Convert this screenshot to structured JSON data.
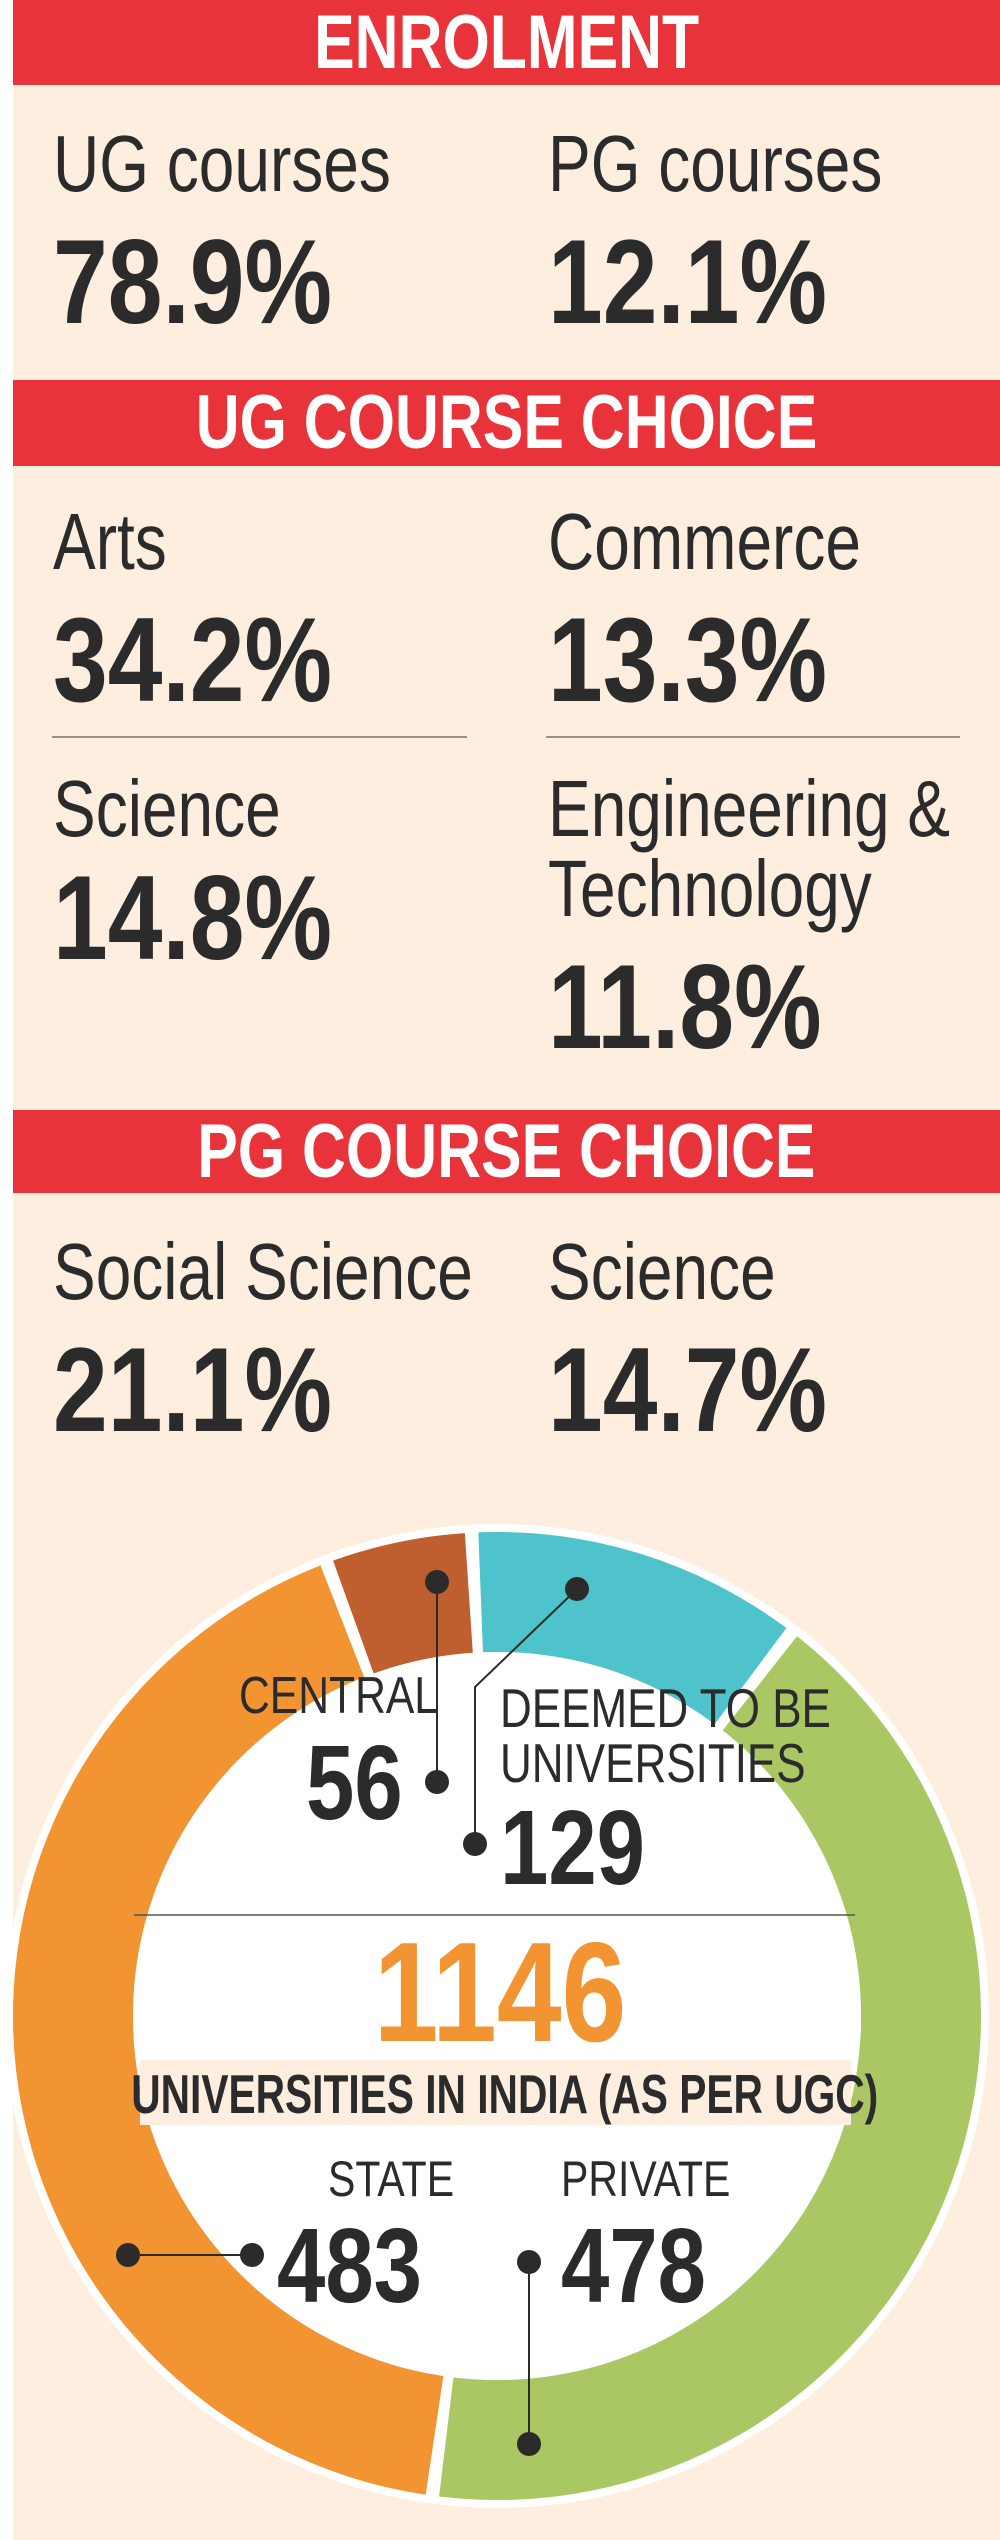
{
  "sections": {
    "enrolment": {
      "title": "ENROLMENT",
      "items": [
        {
          "label": "UG courses",
          "value": "78.9%"
        },
        {
          "label": "PG courses",
          "value": "12.1%"
        }
      ]
    },
    "ug_choice": {
      "title": "UG COURSE CHOICE",
      "items": [
        {
          "label": "Arts",
          "value": "34.2%"
        },
        {
          "label": "Commerce",
          "value": "13.3%"
        },
        {
          "label": "Science",
          "value": "14.8%"
        },
        {
          "label_line1": "Engineering &",
          "label_line2": "Technology",
          "value": "11.8%"
        }
      ]
    },
    "pg_choice": {
      "title": "PG COURSE CHOICE",
      "items": [
        {
          "label": "Social Science",
          "value": "21.1%"
        },
        {
          "label": "Science",
          "value": "14.7%"
        }
      ]
    }
  },
  "colors": {
    "header": "#e8333a",
    "background": "#fdeedf",
    "text": "#2b2b2b",
    "total": "#f39432"
  },
  "chart_data": {
    "type": "pie",
    "variant": "donut",
    "total": "1146",
    "total_caption": "UNIVERSITIES IN INDIA (AS PER UGC)",
    "slices": [
      {
        "name": "CENTRAL",
        "value": 56,
        "display": "56",
        "color": "#bf5e2e"
      },
      {
        "name_line1": "DEEMED TO BE",
        "name_line2": "UNIVERSITIES",
        "name": "DEEMED TO BE UNIVERSITIES",
        "value": 129,
        "display": "129",
        "color": "#4ec3cb"
      },
      {
        "name": "PRIVATE",
        "value": 478,
        "display": "478",
        "color": "#aac764"
      },
      {
        "name": "STATE",
        "value": 483,
        "display": "483",
        "color": "#f39432"
      }
    ]
  }
}
